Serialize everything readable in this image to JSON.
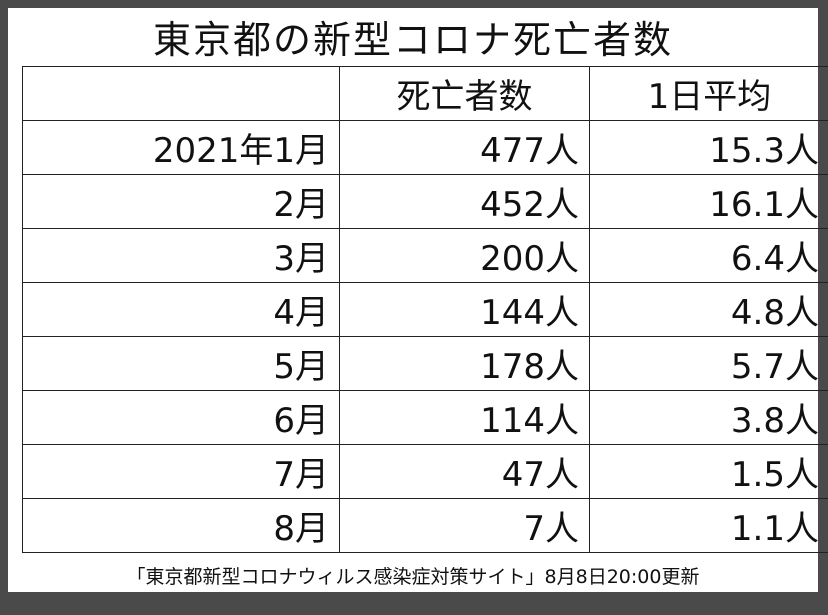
{
  "title": "東京都の新型コロナ死亡者数",
  "header": {
    "blank": "",
    "deaths": "死亡者数",
    "daily_avg": "1日平均"
  },
  "rows": [
    {
      "month": "2021年1月",
      "deaths": "477人",
      "avg": "15.3人"
    },
    {
      "month": "2月",
      "deaths": "452人",
      "avg": "16.1人"
    },
    {
      "month": "3月",
      "deaths": "200人",
      "avg": "6.4人"
    },
    {
      "month": "4月",
      "deaths": "144人",
      "avg": "4.8人"
    },
    {
      "month": "5月",
      "deaths": "178人",
      "avg": "5.7人"
    },
    {
      "month": "6月",
      "deaths": "114人",
      "avg": "3.8人"
    },
    {
      "month": "7月",
      "deaths": "47人",
      "avg": "1.5人"
    },
    {
      "month": "8月",
      "deaths": "7人",
      "avg": "1.1人"
    }
  ],
  "source": "「東京都新型コロナウィルス感染症対策サイト」8月8日20:00更新"
}
